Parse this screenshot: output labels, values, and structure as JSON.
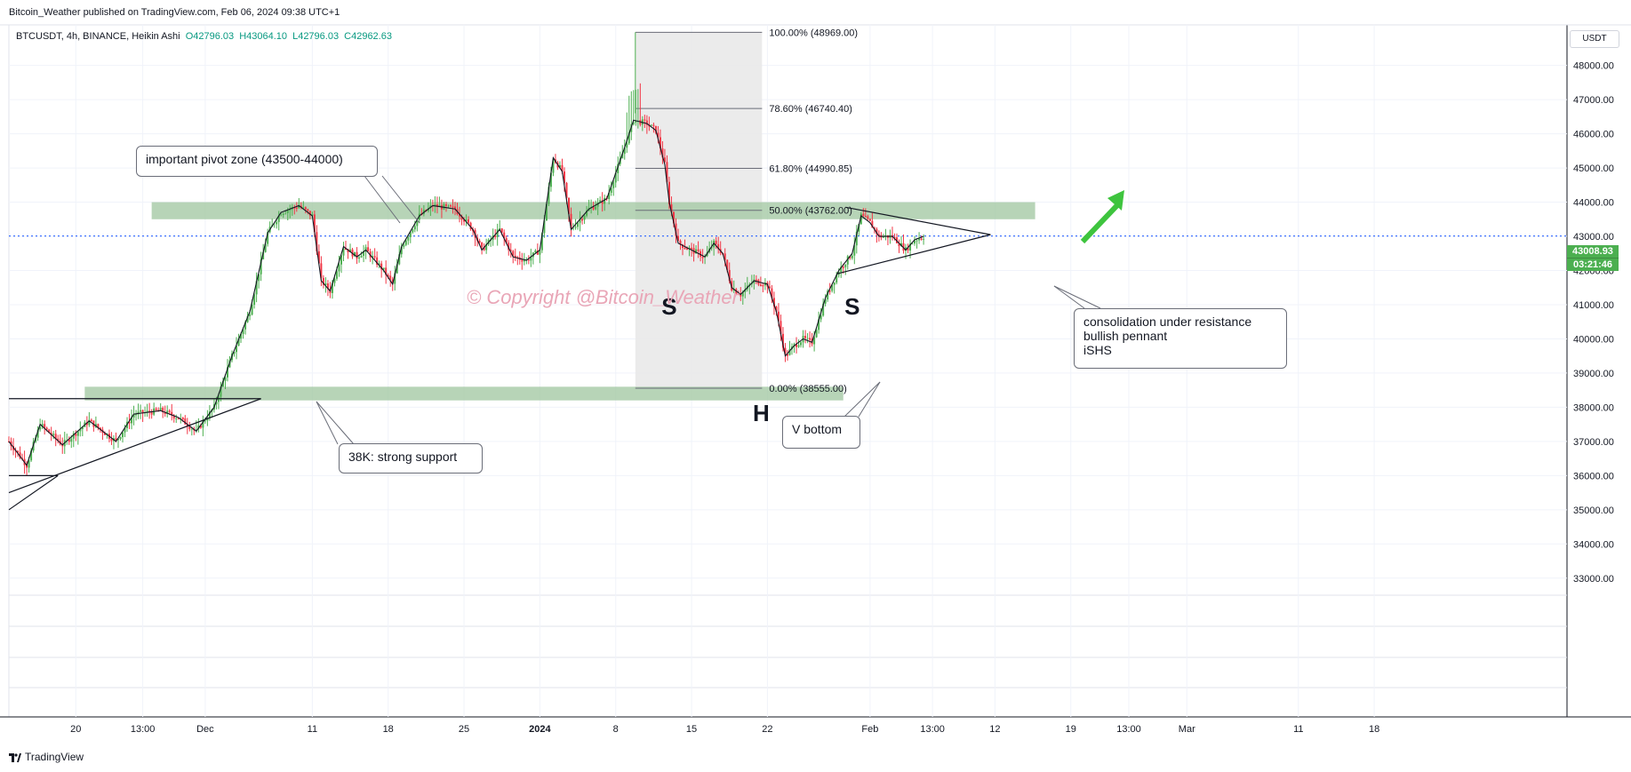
{
  "header": {
    "published": "Bitcoin_Weather published on TradingView.com, Feb 06, 2024 09:38 UTC+1"
  },
  "legend": {
    "symbol": "BTCUSDT, 4h, BINANCE, Heikin Ashi",
    "open": "O42796.03",
    "high": "H43064.10",
    "low": "L42796.03",
    "close": "C42962.63"
  },
  "currency_label": "USDT",
  "price_badge": {
    "price": "43008.93",
    "countdown": "03:21:46"
  },
  "watermark": "© Copyright @Bitcoin_Weather",
  "footer": {
    "brand": "TradingView"
  },
  "colors": {
    "up": "#4caf50",
    "down": "#f23645",
    "zone": "#a5c9a5",
    "dotted": "#2962ff",
    "badge_green": "#4caf50",
    "badge_blue": "#2962ff",
    "arrow": "#3ec43e"
  },
  "chart_data": {
    "type": "candlestick",
    "ylim": [
      32500,
      49200
    ],
    "y_ticks": [
      33000,
      34000,
      35000,
      36000,
      37000,
      38000,
      39000,
      40000,
      41000,
      42000,
      43000,
      44000,
      45000,
      46000,
      47000,
      48000
    ],
    "y_tick_labels": [
      "33000.00",
      "34000.00",
      "35000.00",
      "36000.00",
      "37000.00",
      "38000.00",
      "39000.00",
      "40000.00",
      "41000.00",
      "42000.00",
      "43000.00",
      "44000.00",
      "45000.00",
      "46000.00",
      "47000.00",
      "48000.00"
    ],
    "x_labels": [
      {
        "label": "20",
        "slot": 15
      },
      {
        "label": "13:00",
        "slot": 30
      },
      {
        "label": "Dec",
        "slot": 44
      },
      {
        "label": "11",
        "slot": 68
      },
      {
        "label": "18",
        "slot": 85
      },
      {
        "label": "25",
        "slot": 102
      },
      {
        "label": "2024",
        "slot": 119
      },
      {
        "label": "8",
        "slot": 136
      },
      {
        "label": "15",
        "slot": 153
      },
      {
        "label": "22",
        "slot": 170
      },
      {
        "label": "Feb",
        "slot": 193
      },
      {
        "label": "13:00",
        "slot": 207
      },
      {
        "label": "12",
        "slot": 221
      },
      {
        "label": "19",
        "slot": 238
      },
      {
        "label": "13:00",
        "slot": 251
      },
      {
        "label": "Mar",
        "slot": 264
      },
      {
        "label": "11",
        "slot": 289
      },
      {
        "label": "18",
        "slot": 306
      }
    ],
    "close_path": [
      [
        0,
        37000
      ],
      [
        4,
        36300
      ],
      [
        7,
        37500
      ],
      [
        12,
        36900
      ],
      [
        18,
        37600
      ],
      [
        24,
        37000
      ],
      [
        28,
        37800
      ],
      [
        34,
        37900
      ],
      [
        38,
        37700
      ],
      [
        42,
        37300
      ],
      [
        46,
        38000
      ],
      [
        50,
        39500
      ],
      [
        54,
        40800
      ],
      [
        58,
        43100
      ],
      [
        61,
        43700
      ],
      [
        65,
        43900
      ],
      [
        68,
        43600
      ],
      [
        70,
        41700
      ],
      [
        72,
        41400
      ],
      [
        75,
        42700
      ],
      [
        78,
        42400
      ],
      [
        80,
        42600
      ],
      [
        84,
        42000
      ],
      [
        86,
        41600
      ],
      [
        88,
        42700
      ],
      [
        92,
        43600
      ],
      [
        95,
        43900
      ],
      [
        100,
        43800
      ],
      [
        104,
        43200
      ],
      [
        106,
        42600
      ],
      [
        108,
        42900
      ],
      [
        110,
        43200
      ],
      [
        113,
        42400
      ],
      [
        116,
        42300
      ],
      [
        119,
        42600
      ],
      [
        122,
        45300
      ],
      [
        124,
        44900
      ],
      [
        126,
        43200
      ],
      [
        130,
        43800
      ],
      [
        134,
        44100
      ],
      [
        138,
        45600
      ],
      [
        140,
        46400
      ],
      [
        143,
        46300
      ],
      [
        145,
        46100
      ],
      [
        147,
        45100
      ],
      [
        148,
        44000
      ],
      [
        150,
        42800
      ],
      [
        153,
        42600
      ],
      [
        156,
        42400
      ],
      [
        158,
        42800
      ],
      [
        160,
        42500
      ],
      [
        162,
        41500
      ],
      [
        164,
        41300
      ],
      [
        167,
        41700
      ],
      [
        170,
        41600
      ],
      [
        172,
        40800
      ],
      [
        174,
        39500
      ],
      [
        176,
        39800
      ],
      [
        178,
        40000
      ],
      [
        180,
        39900
      ],
      [
        183,
        41200
      ],
      [
        186,
        42000
      ],
      [
        189,
        42500
      ],
      [
        191,
        43600
      ],
      [
        193,
        43400
      ],
      [
        195,
        43000
      ],
      [
        198,
        43000
      ],
      [
        201,
        42600
      ],
      [
        203,
        42900
      ],
      [
        205,
        43000
      ]
    ],
    "volatility_seed": 7,
    "fib_levels": [
      {
        "label": "100.00% (48969.00)",
        "price": 48969.0
      },
      {
        "label": "78.60% (46740.40)",
        "price": 46740.4
      },
      {
        "label": "61.80% (44990.85)",
        "price": 44990.85
      },
      {
        "label": "50.00% (43762.00)",
        "price": 43762.0
      },
      {
        "label": "0.00% (38555.00)",
        "price": 38555.0
      }
    ],
    "zones": [
      {
        "name": "pivot",
        "low": 43500,
        "high": 44000,
        "from_slot": 32,
        "to_slot": 230
      },
      {
        "name": "support",
        "low": 38200,
        "high": 38600,
        "from_slot": 17,
        "to_slot": 187
      }
    ],
    "pattern_labels": [
      "S",
      "H",
      "S"
    ],
    "current_price": 43008.93
  },
  "annotations": {
    "pivot_zone": "important pivot zone (43500-44000)",
    "support": "38K: strong support",
    "v_bottom": "V bottom",
    "consolidation_line1": "consolidation under resistance",
    "consolidation_line2": "bullish pennant",
    "consolidation_line3": "iSHS"
  }
}
